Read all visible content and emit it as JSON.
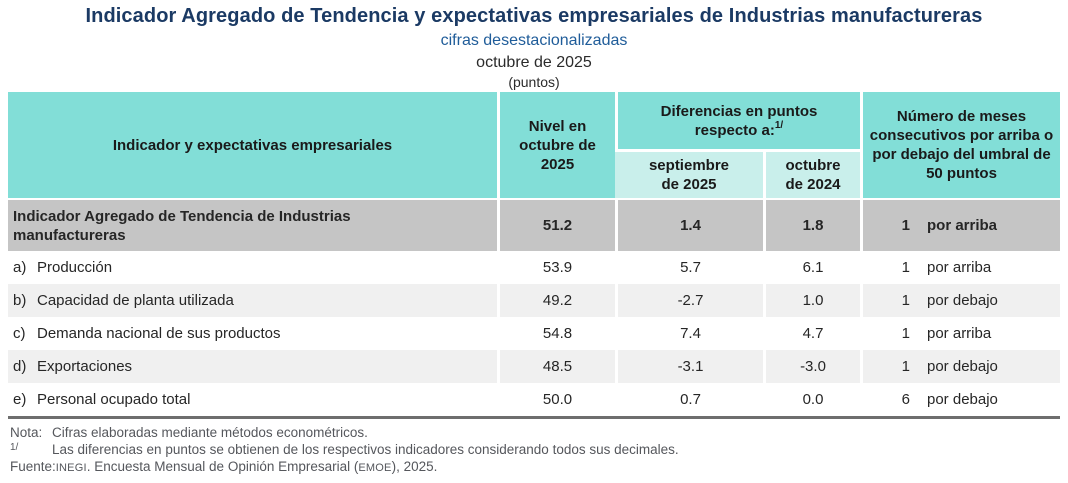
{
  "header": {
    "title": "Indicador Agregado de Tendencia y expectativas empresariales de Industrias manufactureras",
    "subtitle": "cifras desestacionalizadas",
    "period": "octubre de 2025",
    "units": "(puntos)"
  },
  "table": {
    "columns": {
      "indicator": "Indicador y expectativas empresariales",
      "level": "Nivel en octubre de 2025",
      "diff_group": "Diferencias en puntos respecto a:",
      "diff_group_sup": "1/",
      "diff_prev_month": "septiembre de 2025",
      "diff_prev_year": "octubre de 2024",
      "months": "Número de meses consecutivos por arriba o por debajo del umbral de 50 puntos"
    },
    "summary_row": {
      "label": "Indicador Agregado de Tendencia de Industrias manufactureras",
      "level": "51.2",
      "diff_prev_month": "1.4",
      "diff_prev_year": "1.8",
      "months_count": "1",
      "months_label": "por arriba"
    },
    "rows": [
      {
        "letter": "a)",
        "label": "Producción",
        "level": "53.9",
        "diff_prev_month": "5.7",
        "diff_prev_year": "6.1",
        "months_count": "1",
        "months_label": "por arriba"
      },
      {
        "letter": "b)",
        "label": "Capacidad de planta utilizada",
        "level": "49.2",
        "diff_prev_month": "-2.7",
        "diff_prev_year": "1.0",
        "months_count": "1",
        "months_label": "por debajo"
      },
      {
        "letter": "c)",
        "label": "Demanda nacional de sus productos",
        "level": "54.8",
        "diff_prev_month": "7.4",
        "diff_prev_year": "4.7",
        "months_count": "1",
        "months_label": "por arriba"
      },
      {
        "letter": "d)",
        "label": "Exportaciones",
        "level": "48.5",
        "diff_prev_month": "-3.1",
        "diff_prev_year": "-3.0",
        "months_count": "1",
        "months_label": "por debajo"
      },
      {
        "letter": "e)",
        "label": "Personal ocupado total",
        "level": "50.0",
        "diff_prev_month": "0.7",
        "diff_prev_year": "0.0",
        "months_count": "6",
        "months_label": "por debajo"
      }
    ]
  },
  "footnotes": {
    "note_label": "Nota:",
    "note_text": "Cifras elaboradas mediante métodos econométricos.",
    "ref_label": "1/",
    "ref_text": "Las diferencias en puntos se obtienen de los respectivos indicadores considerando todos sus decimales.",
    "source_label": "Fuente:",
    "source_inegi": "INEGI",
    "source_mid": ". Encuesta Mensual de Opinión Empresarial (",
    "source_emoe": "EMOE",
    "source_end": "), 2025."
  },
  "colors": {
    "header_teal": "#82DED7",
    "subheader_teal": "#C9EFEB",
    "summary_gray": "#C5C5C5",
    "alt_row_gray": "#F0F0F0",
    "title_navy": "#1B3A64",
    "subtitle_blue": "#1F5C99",
    "footnote_gray": "#55575C",
    "table_bottom_border": "#6E6E6E"
  }
}
